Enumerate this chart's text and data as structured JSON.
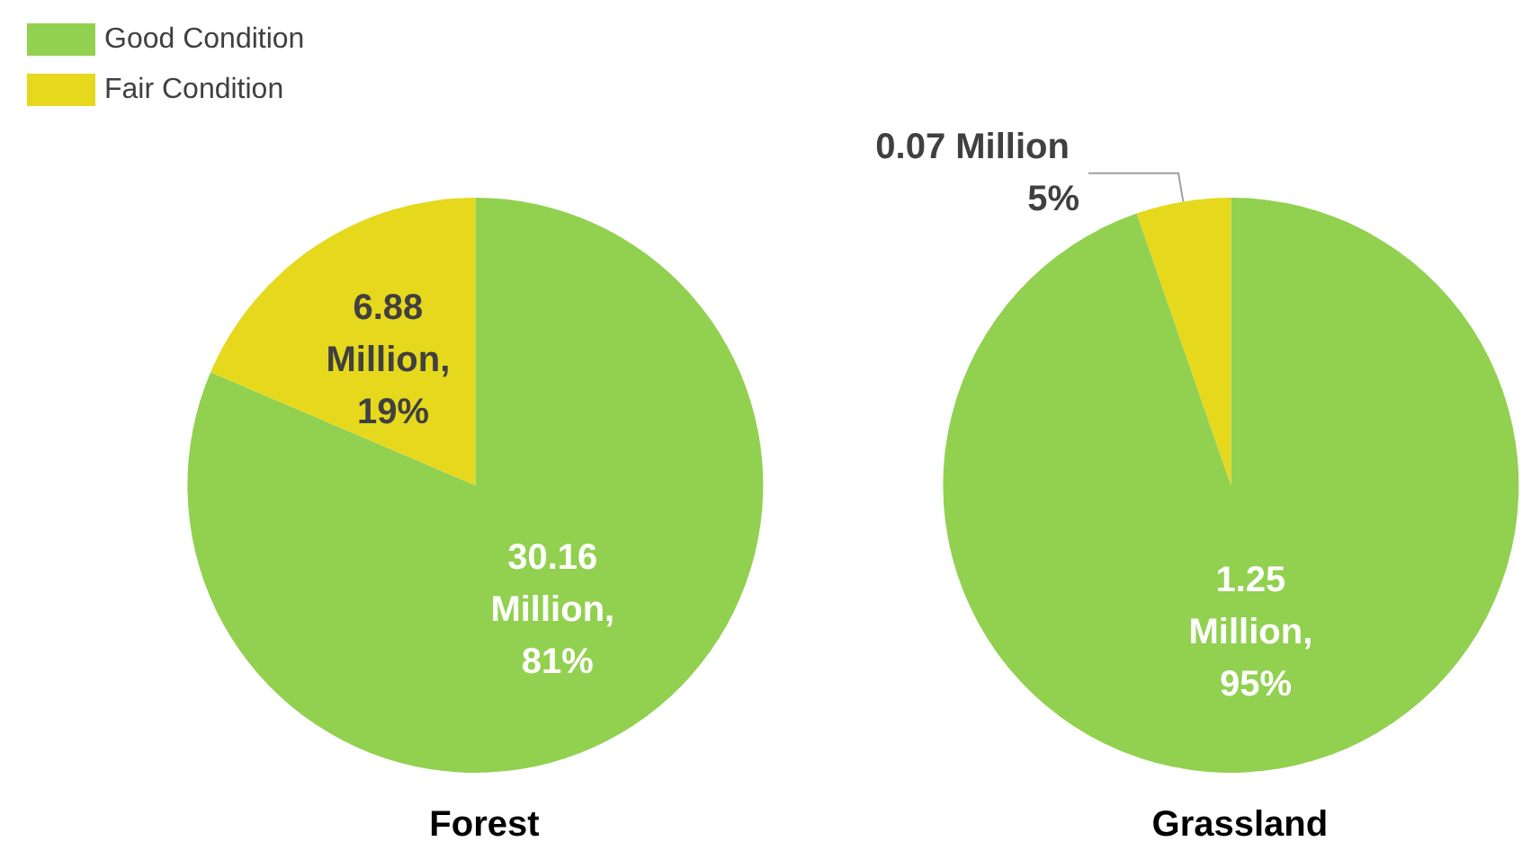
{
  "chart_data": [
    {
      "type": "pie",
      "title": "Forest",
      "categories": [
        "Good Condition",
        "Fair Condition"
      ],
      "values": [
        30.16,
        6.88
      ],
      "colors": [
        "#92d050",
        "#e6d81c"
      ],
      "value_labels": [
        "30.16 Million, 81%",
        "6.88 Million, 19%"
      ],
      "legend": "top left"
    },
    {
      "type": "pie",
      "title": "Grassland",
      "categories": [
        null,
        null
      ],
      "values": [
        1.25,
        0.07
      ],
      "colors": [
        "#92d050",
        "#e6d81c"
      ],
      "value_labels": [
        "1.25 Million, 95%",
        "0.07 Million 5%"
      ]
    }
  ]
}
